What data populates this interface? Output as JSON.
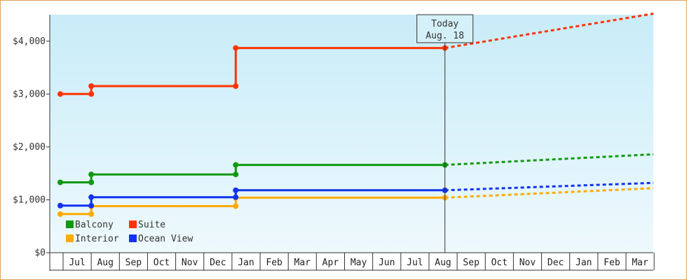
{
  "chart_data": {
    "type": "line",
    "title": "",
    "xlabel": "",
    "ylabel": "",
    "ylim": [
      0,
      4500
    ],
    "y_ticks": [
      "$0",
      "$1,000",
      "$2,000",
      "$3,000",
      "$4,000"
    ],
    "y_tick_values": [
      0,
      1000,
      2000,
      3000,
      4000
    ],
    "x_categories": [
      "Jul",
      "Aug",
      "Sep",
      "Oct",
      "Nov",
      "Dec",
      "Jan",
      "Feb",
      "Mar",
      "Apr",
      "May",
      "Jun",
      "Jul",
      "Aug",
      "Sep",
      "Oct",
      "Nov",
      "Dec",
      "Jan",
      "Feb",
      "Mar"
    ],
    "today": {
      "line1": "Today",
      "line2": "Aug. 18"
    },
    "background": "light-blue-gradient",
    "grid": false,
    "legend_placement": "bottom-left",
    "series": [
      {
        "name": "Balcony",
        "color": "#119911",
        "points": [
          [
            "Jun 28",
            1330
          ],
          [
            "Aug 1",
            1330
          ],
          [
            "Aug 1",
            1480
          ],
          [
            "Jan 5",
            1480
          ],
          [
            "Jan 5",
            1660
          ],
          [
            "Aug 18",
            1660
          ]
        ],
        "projection_end": 1860
      },
      {
        "name": "Suite",
        "color": "#ff3300",
        "points": [
          [
            "Jun 28",
            3000
          ],
          [
            "Aug 1",
            3000
          ],
          [
            "Aug 1",
            3150
          ],
          [
            "Jan 5",
            3150
          ],
          [
            "Jan 5",
            3870
          ],
          [
            "Aug 18",
            3870
          ]
        ],
        "projection_end": 4520
      },
      {
        "name": "Interior",
        "color": "#ffaa00",
        "points": [
          [
            "Jun 28",
            730
          ],
          [
            "Aug 1",
            730
          ],
          [
            "Aug 1",
            880
          ],
          [
            "Jan 5",
            880
          ],
          [
            "Jan 5",
            1040
          ],
          [
            "Aug 18",
            1040
          ]
        ],
        "projection_end": 1220
      },
      {
        "name": "Ocean View",
        "color": "#1133ee",
        "points": [
          [
            "Jun 28",
            890
          ],
          [
            "Aug 1",
            890
          ],
          [
            "Aug 1",
            1050
          ],
          [
            "Jan 5",
            1050
          ],
          [
            "Jan 5",
            1180
          ],
          [
            "Aug 18",
            1180
          ]
        ],
        "projection_end": 1320
      }
    ]
  }
}
